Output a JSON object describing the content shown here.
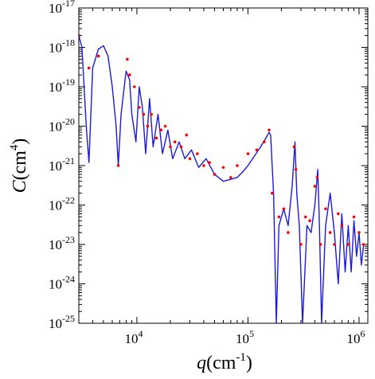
{
  "chart_data": {
    "type": "scatter",
    "title": "",
    "xlabel": {
      "var": "q",
      "open": "(",
      "unit": "cm",
      "unit_exp": "-1",
      "close": ")"
    },
    "ylabel": {
      "var": "C",
      "open": "(",
      "unit": "cm",
      "unit_exp": "4",
      "close": ")"
    },
    "x_scale": "log",
    "y_scale": "log",
    "xlim": [
      3000,
      1200000
    ],
    "ylim": [
      1e-25,
      1e-17
    ],
    "grid": false,
    "legend": "none",
    "x_ticks": [
      {
        "value": 10000,
        "base": "10",
        "exp": "4"
      },
      {
        "value": 100000,
        "base": "10",
        "exp": "5"
      },
      {
        "value": 1000000,
        "base": "10",
        "exp": "6"
      }
    ],
    "y_ticks": [
      {
        "value": 1e-17,
        "base": "10",
        "exp": "-17"
      },
      {
        "value": 1e-18,
        "base": "10",
        "exp": "-18"
      },
      {
        "value": 1e-19,
        "base": "10",
        "exp": "-19"
      },
      {
        "value": 1e-20,
        "base": "10",
        "exp": "-20"
      },
      {
        "value": 1e-21,
        "base": "10",
        "exp": "-21"
      },
      {
        "value": 1e-22,
        "base": "10",
        "exp": "-22"
      },
      {
        "value": 1e-23,
        "base": "10",
        "exp": "-23"
      },
      {
        "value": 1e-24,
        "base": "10",
        "exp": "-24"
      },
      {
        "value": 1e-25,
        "base": "10",
        "exp": "-25"
      }
    ],
    "series": [
      {
        "kind": "scatter-points",
        "color": "#ff0000",
        "x": [
          3000,
          3700,
          4500,
          6800,
          8200,
          8600,
          9500,
          10500,
          11500,
          12500,
          13500,
          15000,
          16500,
          18000,
          20000,
          22000,
          25000,
          28000,
          30000,
          35000,
          40000,
          45000,
          50000,
          60000,
          70000,
          80000,
          100000,
          120000,
          140000,
          155000,
          165000,
          190000,
          210000,
          230000,
          260000,
          270000,
          300000,
          330000,
          360000,
          400000,
          420000,
          450000,
          500000,
          550000,
          600000,
          650000,
          700000,
          800000,
          900000,
          1000000,
          1100000
        ],
        "y": [
          2e-18,
          3e-19,
          6e-19,
          1e-21,
          5e-19,
          2e-19,
          1e-19,
          3e-20,
          2e-20,
          1e-20,
          2e-20,
          5e-21,
          8e-21,
          1e-20,
          3e-21,
          4e-21,
          3e-21,
          6e-21,
          1.5e-21,
          2e-21,
          1e-21,
          1.2e-21,
          6e-22,
          9e-22,
          5e-22,
          1e-21,
          2e-21,
          2.5e-21,
          4e-21,
          8e-21,
          2e-22,
          5e-23,
          8e-23,
          2e-23,
          3e-21,
          8e-22,
          1e-23,
          5e-23,
          4e-23,
          3e-22,
          5e-22,
          1e-23,
          8e-23,
          2e-23,
          1e-23,
          6e-23,
          3e-23,
          1e-23,
          5e-23,
          2e-23,
          1e-23
        ]
      },
      {
        "kind": "fit-line",
        "color": "#1a1adb",
        "x": [
          3000,
          3200,
          3500,
          3700,
          4000,
          4500,
          5000,
          5500,
          6000,
          6500,
          6800,
          7200,
          8000,
          8600,
          9000,
          9800,
          10500,
          11200,
          12000,
          13000,
          14000,
          15500,
          17000,
          19000,
          21000,
          24000,
          27000,
          31000,
          36000,
          42000,
          50000,
          60000,
          70000,
          80000,
          90000,
          100000,
          115000,
          130000,
          145000,
          155000,
          160000,
          170000,
          180000,
          190000,
          210000,
          230000,
          250000,
          265000,
          275000,
          290000,
          310000,
          340000,
          370000,
          400000,
          425000,
          440000,
          460000,
          500000,
          550000,
          600000,
          650000,
          700000,
          750000,
          800000,
          850000,
          900000,
          950000,
          1000000,
          1050000,
          1100000
        ],
        "y": [
          2e-18,
          1e-18,
          1e-20,
          1.2e-21,
          3e-19,
          9e-19,
          1.1e-18,
          6e-19,
          1e-19,
          1e-20,
          1e-21,
          2e-20,
          2.5e-19,
          1.5e-19,
          2e-20,
          4e-21,
          1e-19,
          3e-20,
          2e-21,
          5e-20,
          3e-21,
          2e-20,
          2e-21,
          8e-21,
          1.5e-21,
          4e-21,
          1.5e-21,
          2.5e-21,
          9e-22,
          1.5e-21,
          6e-22,
          4e-22,
          4.5e-22,
          5e-22,
          7e-22,
          1e-21,
          1.8e-21,
          3e-21,
          5e-21,
          7e-21,
          6e-21,
          2e-22,
          1e-25,
          3e-23,
          8e-23,
          3e-23,
          3e-22,
          4e-21,
          2e-22,
          3e-23,
          1e-25,
          3e-23,
          2e-23,
          1e-22,
          8e-22,
          3e-23,
          1e-25,
          3e-23,
          2e-22,
          2e-23,
          1e-24,
          6e-23,
          2e-24,
          3e-23,
          2e-24,
          4e-23,
          5e-24,
          2e-23,
          3e-24,
          1e-23
        ]
      }
    ]
  }
}
